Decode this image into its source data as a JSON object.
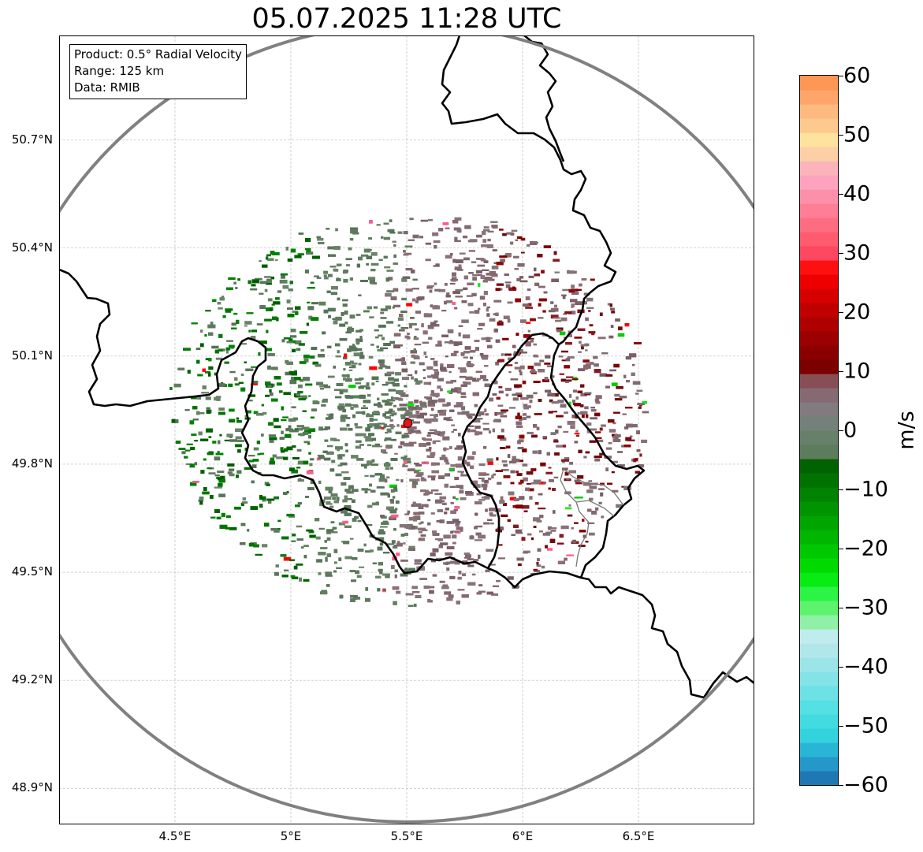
{
  "title": "05.07.2025 11:28 UTC",
  "info": {
    "product": "Product: 0.5° Radial Velocity",
    "range": "Range: 125 km",
    "data": "Data: RMIB"
  },
  "axes": {
    "lon_min": 4.0,
    "lon_max": 7.0,
    "lat_min": 48.8,
    "lat_max": 50.99,
    "y_ticks": [
      {
        "value": 50.7,
        "label": "50.7°N"
      },
      {
        "value": 50.4,
        "label": "50.4°N"
      },
      {
        "value": 50.1,
        "label": "50.1°N"
      },
      {
        "value": 49.8,
        "label": "49.8°N"
      },
      {
        "value": 49.5,
        "label": "49.5°N"
      },
      {
        "value": 49.2,
        "label": "49.2°N"
      },
      {
        "value": 48.9,
        "label": "48.9°N"
      }
    ],
    "x_ticks": [
      {
        "value": 4.5,
        "label": "4.5°E"
      },
      {
        "value": 5.0,
        "label": "5°E"
      },
      {
        "value": 5.5,
        "label": "5.5°E"
      },
      {
        "value": 6.0,
        "label": "6°E"
      },
      {
        "value": 6.5,
        "label": "6.5°E"
      }
    ]
  },
  "radar": {
    "lon": 5.505,
    "lat": 49.914,
    "range_km": 125,
    "marker_color": "#e0161c"
  },
  "colorbar": {
    "unit": "m/s",
    "min": -60,
    "max": 60,
    "tick_labels": [
      "60",
      "50",
      "40",
      "30",
      "20",
      "10",
      "0",
      "−10",
      "−20",
      "−30",
      "−40",
      "−50",
      "−60"
    ],
    "tick_values": [
      60,
      50,
      40,
      30,
      20,
      10,
      0,
      -10,
      -20,
      -30,
      -40,
      -50,
      -60
    ],
    "colors_bottom_to_top": [
      "#1f78b4",
      "#2697c9",
      "#29b6d6",
      "#32d3dd",
      "#42dbe0",
      "#55e0e3",
      "#6de2e6",
      "#84e3e7",
      "#9be5e9",
      "#b2e7ea",
      "#c1ecee",
      "#8ff0a8",
      "#5ef36e",
      "#2cf445",
      "#08eb15",
      "#00da00",
      "#00c800",
      "#00b600",
      "#00a500",
      "#009400",
      "#008300",
      "#007200",
      "#006200",
      "#5c7c5c",
      "#66806a",
      "#74807a",
      "#817a7f",
      "#866a72",
      "#874e55",
      "#7b0000",
      "#8a0000",
      "#9c0000",
      "#ae0000",
      "#c00000",
      "#d60000",
      "#ee0000",
      "#ff1010",
      "#fe4760",
      "#fe5a70",
      "#fe6c82",
      "#fd7e95",
      "#fd90a9",
      "#fda3be",
      "#fbb4ba",
      "#fcd0a4",
      "#fde39d",
      "#fdc98f",
      "#fdba7e",
      "#fda56a",
      "#fe9656"
    ]
  }
}
